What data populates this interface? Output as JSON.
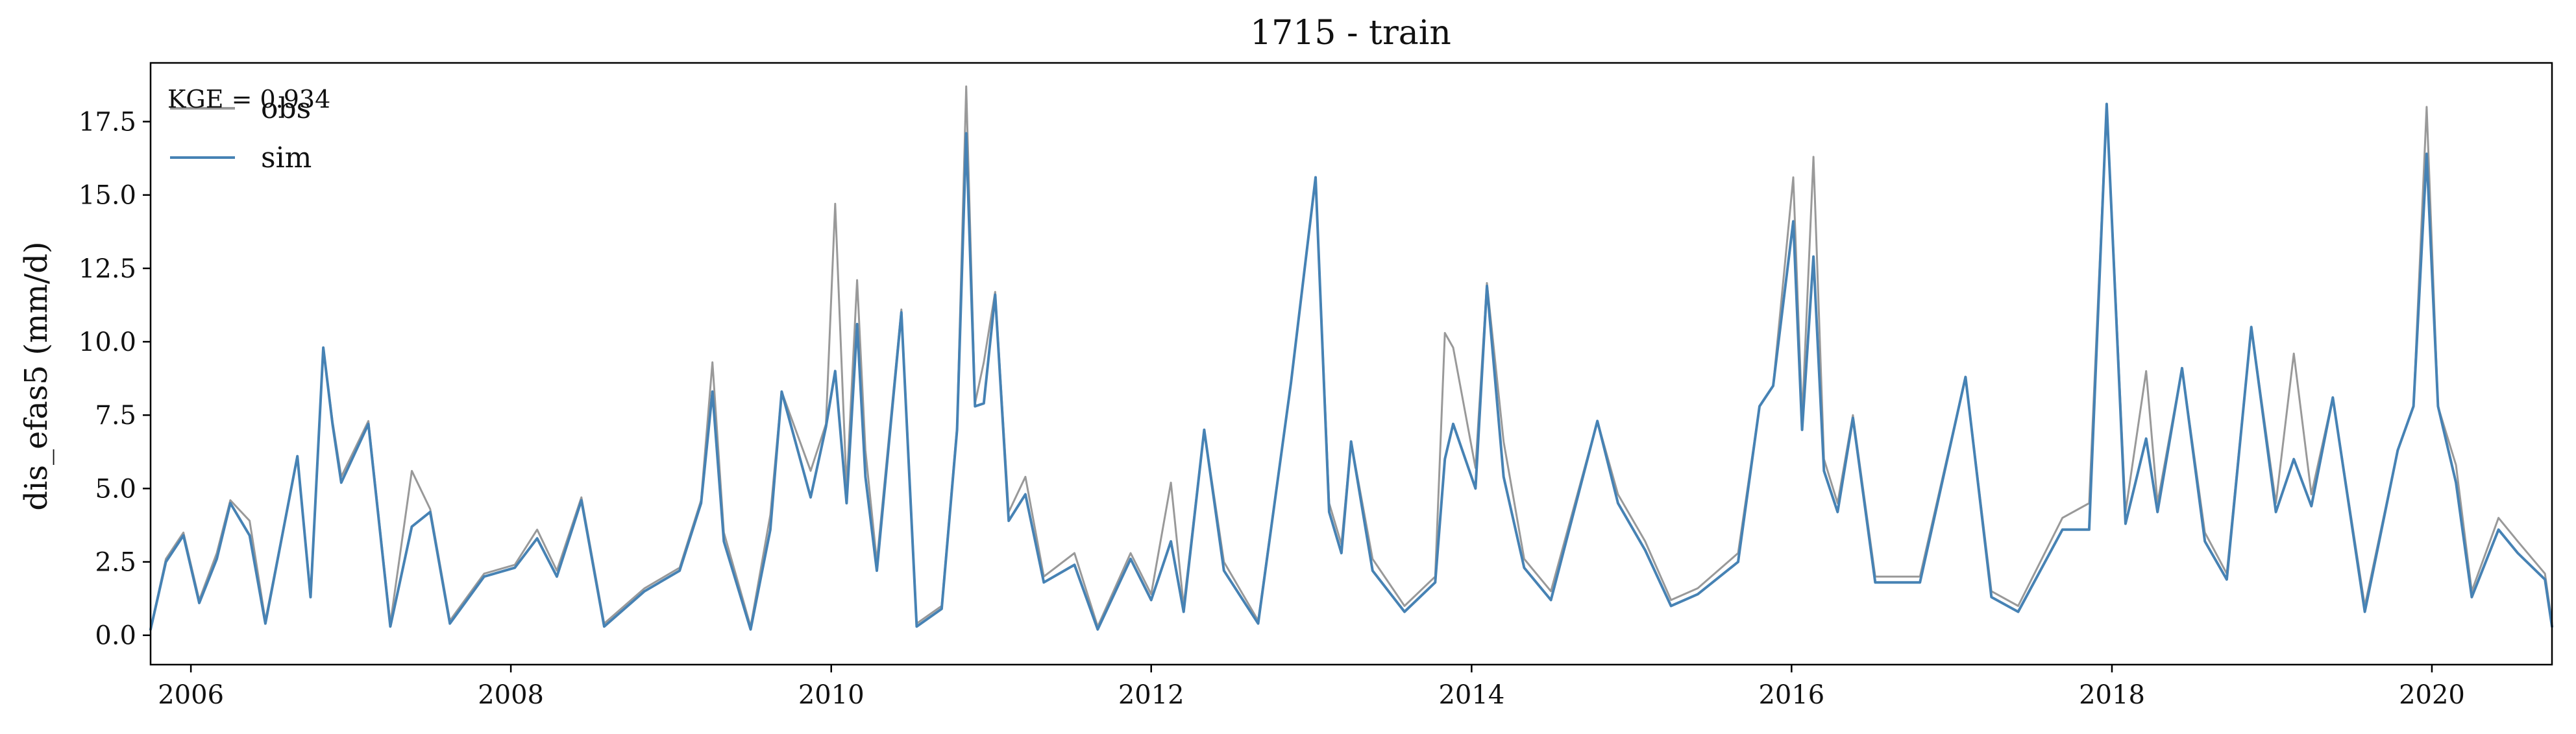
{
  "chart_data": {
    "type": "line",
    "title": "1715 - train",
    "xlabel": "",
    "ylabel": "dis_efas5 (mm/d)",
    "xlim": [
      "2005-10-01",
      "2020-10-01"
    ],
    "ylim": [
      -1.0,
      19.5
    ],
    "x_ticks": [
      "2006",
      "2008",
      "2010",
      "2012",
      "2014",
      "2016",
      "2018",
      "2020"
    ],
    "y_ticks": [
      "0.0",
      "2.5",
      "5.0",
      "7.5",
      "10.0",
      "12.5",
      "15.0",
      "17.5"
    ],
    "grid": false,
    "legend": {
      "position": "top-left",
      "entries": [
        "obs",
        "sim"
      ]
    },
    "annotation": "KGE = 0.934",
    "colors": {
      "obs": "#999999",
      "sim": "#4682b4"
    },
    "series": [
      {
        "name": "obs",
        "points": [
          [
            "2005-10-01",
            0.2
          ],
          [
            "2005-11-05",
            2.6
          ],
          [
            "2005-12-15",
            3.5
          ],
          [
            "2006-01-20",
            1.2
          ],
          [
            "2006-03-01",
            2.8
          ],
          [
            "2006-04-01",
            4.6
          ],
          [
            "2006-05-15",
            3.9
          ],
          [
            "2006-06-20",
            0.5
          ],
          [
            "2006-09-01",
            6.1
          ],
          [
            "2006-10-01",
            1.4
          ],
          [
            "2006-10-30",
            9.8
          ],
          [
            "2006-11-20",
            7.3
          ],
          [
            "2006-12-10",
            5.4
          ],
          [
            "2007-02-10",
            7.3
          ],
          [
            "2007-04-01",
            0.4
          ],
          [
            "2007-05-20",
            5.6
          ],
          [
            "2007-07-01",
            4.3
          ],
          [
            "2007-08-15",
            0.5
          ],
          [
            "2007-11-01",
            2.1
          ],
          [
            "2008-01-10",
            2.4
          ],
          [
            "2008-03-01",
            3.6
          ],
          [
            "2008-04-15",
            2.2
          ],
          [
            "2008-06-10",
            4.7
          ],
          [
            "2008-08-01",
            0.4
          ],
          [
            "2008-11-01",
            1.6
          ],
          [
            "2009-01-20",
            2.3
          ],
          [
            "2009-03-10",
            4.6
          ],
          [
            "2009-04-05",
            9.3
          ],
          [
            "2009-05-01",
            3.5
          ],
          [
            "2009-07-01",
            0.3
          ],
          [
            "2009-08-15",
            4.1
          ],
          [
            "2009-09-10",
            8.3
          ],
          [
            "2009-11-15",
            5.6
          ],
          [
            "2009-12-20",
            7.2
          ],
          [
            "2010-01-10",
            14.7
          ],
          [
            "2010-02-05",
            5.0
          ],
          [
            "2010-03-01",
            12.1
          ],
          [
            "2010-03-20",
            6.3
          ],
          [
            "2010-04-15",
            2.5
          ],
          [
            "2010-06-10",
            11.1
          ],
          [
            "2010-07-15",
            0.4
          ],
          [
            "2010-09-10",
            1.0
          ],
          [
            "2010-10-15",
            7.1
          ],
          [
            "2010-11-05",
            18.7
          ],
          [
            "2010-11-25",
            7.9
          ],
          [
            "2010-12-15",
            9.3
          ],
          [
            "2011-01-10",
            11.7
          ],
          [
            "2011-02-10",
            4.2
          ],
          [
            "2011-03-20",
            5.4
          ],
          [
            "2011-05-01",
            2.0
          ],
          [
            "2011-07-10",
            2.8
          ],
          [
            "2011-09-01",
            0.3
          ],
          [
            "2011-11-15",
            2.8
          ],
          [
            "2012-01-01",
            1.4
          ],
          [
            "2012-02-15",
            5.2
          ],
          [
            "2012-03-15",
            1.0
          ],
          [
            "2012-05-01",
            7.0
          ],
          [
            "2012-06-15",
            2.5
          ],
          [
            "2012-09-01",
            0.5
          ],
          [
            "2012-11-15",
            8.6
          ],
          [
            "2013-01-10",
            15.6
          ],
          [
            "2013-02-10",
            4.5
          ],
          [
            "2013-03-10",
            3.1
          ],
          [
            "2013-04-01",
            6.6
          ],
          [
            "2013-05-20",
            2.6
          ],
          [
            "2013-08-01",
            1.0
          ],
          [
            "2013-10-10",
            2.0
          ],
          [
            "2013-11-01",
            10.3
          ],
          [
            "2013-11-20",
            9.8
          ],
          [
            "2014-01-10",
            5.7
          ],
          [
            "2014-02-05",
            12.0
          ],
          [
            "2014-03-15",
            6.6
          ],
          [
            "2014-05-01",
            2.6
          ],
          [
            "2014-07-01",
            1.5
          ],
          [
            "2014-10-15",
            7.3
          ],
          [
            "2014-12-01",
            4.8
          ],
          [
            "2015-02-01",
            3.2
          ],
          [
            "2015-04-01",
            1.2
          ],
          [
            "2015-06-01",
            1.6
          ],
          [
            "2015-09-01",
            2.8
          ],
          [
            "2015-10-20",
            7.8
          ],
          [
            "2015-11-20",
            8.5
          ],
          [
            "2016-01-05",
            15.6
          ],
          [
            "2016-01-25",
            7.4
          ],
          [
            "2016-02-20",
            16.3
          ],
          [
            "2016-03-15",
            6.0
          ],
          [
            "2016-04-15",
            4.5
          ],
          [
            "2016-05-20",
            7.5
          ],
          [
            "2016-07-10",
            2.0
          ],
          [
            "2016-10-20",
            2.0
          ],
          [
            "2017-02-01",
            8.8
          ],
          [
            "2017-04-01",
            1.5
          ],
          [
            "2017-06-01",
            1.0
          ],
          [
            "2017-09-10",
            4.0
          ],
          [
            "2017-11-10",
            4.5
          ],
          [
            "2017-12-20",
            18.1
          ],
          [
            "2018-02-01",
            4.2
          ],
          [
            "2018-03-20",
            9.0
          ],
          [
            "2018-04-15",
            4.5
          ],
          [
            "2018-06-10",
            9.1
          ],
          [
            "2018-08-01",
            3.5
          ],
          [
            "2018-09-20",
            2.1
          ],
          [
            "2018-11-15",
            10.5
          ],
          [
            "2019-01-10",
            4.5
          ],
          [
            "2019-02-20",
            9.6
          ],
          [
            "2019-04-01",
            4.8
          ],
          [
            "2019-05-20",
            8.1
          ],
          [
            "2019-08-01",
            1.0
          ],
          [
            "2019-10-15",
            6.3
          ],
          [
            "2019-11-20",
            7.8
          ],
          [
            "2019-12-20",
            18.0
          ],
          [
            "2020-01-15",
            7.8
          ],
          [
            "2020-02-25",
            5.8
          ],
          [
            "2020-04-01",
            1.5
          ],
          [
            "2020-06-01",
            4.0
          ],
          [
            "2020-07-15",
            3.2
          ],
          [
            "2020-09-15",
            2.1
          ],
          [
            "2020-10-01",
            0.4
          ]
        ]
      },
      {
        "name": "sim",
        "points": [
          [
            "2005-10-01",
            0.2
          ],
          [
            "2005-11-05",
            2.5
          ],
          [
            "2005-12-15",
            3.4
          ],
          [
            "2006-01-20",
            1.1
          ],
          [
            "2006-03-01",
            2.6
          ],
          [
            "2006-04-01",
            4.5
          ],
          [
            "2006-05-15",
            3.4
          ],
          [
            "2006-06-20",
            0.4
          ],
          [
            "2006-09-01",
            6.1
          ],
          [
            "2006-10-01",
            1.3
          ],
          [
            "2006-10-30",
            9.8
          ],
          [
            "2006-11-20",
            7.2
          ],
          [
            "2006-12-10",
            5.2
          ],
          [
            "2007-02-10",
            7.2
          ],
          [
            "2007-04-01",
            0.3
          ],
          [
            "2007-05-20",
            3.7
          ],
          [
            "2007-07-01",
            4.2
          ],
          [
            "2007-08-15",
            0.4
          ],
          [
            "2007-11-01",
            2.0
          ],
          [
            "2008-01-10",
            2.3
          ],
          [
            "2008-03-01",
            3.3
          ],
          [
            "2008-04-15",
            2.0
          ],
          [
            "2008-06-10",
            4.6
          ],
          [
            "2008-08-01",
            0.3
          ],
          [
            "2008-11-01",
            1.5
          ],
          [
            "2009-01-20",
            2.2
          ],
          [
            "2009-03-10",
            4.5
          ],
          [
            "2009-04-05",
            8.3
          ],
          [
            "2009-05-01",
            3.2
          ],
          [
            "2009-07-01",
            0.2
          ],
          [
            "2009-08-15",
            3.6
          ],
          [
            "2009-09-10",
            8.3
          ],
          [
            "2009-11-15",
            4.7
          ],
          [
            "2009-12-20",
            7.1
          ],
          [
            "2010-01-10",
            9.0
          ],
          [
            "2010-02-05",
            4.5
          ],
          [
            "2010-03-01",
            10.6
          ],
          [
            "2010-03-20",
            5.4
          ],
          [
            "2010-04-15",
            2.2
          ],
          [
            "2010-06-10",
            11.0
          ],
          [
            "2010-07-15",
            0.3
          ],
          [
            "2010-09-10",
            0.9
          ],
          [
            "2010-10-15",
            7.0
          ],
          [
            "2010-11-05",
            17.1
          ],
          [
            "2010-11-25",
            7.8
          ],
          [
            "2010-12-15",
            7.9
          ],
          [
            "2011-01-10",
            11.6
          ],
          [
            "2011-02-10",
            3.9
          ],
          [
            "2011-03-20",
            4.8
          ],
          [
            "2011-05-01",
            1.8
          ],
          [
            "2011-07-10",
            2.4
          ],
          [
            "2011-09-01",
            0.2
          ],
          [
            "2011-11-15",
            2.6
          ],
          [
            "2012-01-01",
            1.2
          ],
          [
            "2012-02-15",
            3.2
          ],
          [
            "2012-03-15",
            0.8
          ],
          [
            "2012-05-01",
            7.0
          ],
          [
            "2012-06-15",
            2.2
          ],
          [
            "2012-09-01",
            0.4
          ],
          [
            "2012-11-15",
            8.6
          ],
          [
            "2013-01-10",
            15.6
          ],
          [
            "2013-02-10",
            4.2
          ],
          [
            "2013-03-10",
            2.8
          ],
          [
            "2013-04-01",
            6.6
          ],
          [
            "2013-05-20",
            2.2
          ],
          [
            "2013-08-01",
            0.8
          ],
          [
            "2013-10-10",
            1.8
          ],
          [
            "2013-11-01",
            6.0
          ],
          [
            "2013-11-20",
            7.2
          ],
          [
            "2014-01-10",
            5.0
          ],
          [
            "2014-02-05",
            11.9
          ],
          [
            "2014-03-15",
            5.4
          ],
          [
            "2014-05-01",
            2.3
          ],
          [
            "2014-07-01",
            1.2
          ],
          [
            "2014-10-15",
            7.3
          ],
          [
            "2014-12-01",
            4.5
          ],
          [
            "2015-02-01",
            2.9
          ],
          [
            "2015-04-01",
            1.0
          ],
          [
            "2015-06-01",
            1.4
          ],
          [
            "2015-09-01",
            2.5
          ],
          [
            "2015-10-20",
            7.8
          ],
          [
            "2015-11-20",
            8.5
          ],
          [
            "2016-01-05",
            14.1
          ],
          [
            "2016-01-25",
            7.0
          ],
          [
            "2016-02-20",
            12.9
          ],
          [
            "2016-03-15",
            5.6
          ],
          [
            "2016-04-15",
            4.2
          ],
          [
            "2016-05-20",
            7.4
          ],
          [
            "2016-07-10",
            1.8
          ],
          [
            "2016-10-20",
            1.8
          ],
          [
            "2017-02-01",
            8.8
          ],
          [
            "2017-04-01",
            1.3
          ],
          [
            "2017-06-01",
            0.8
          ],
          [
            "2017-09-10",
            3.6
          ],
          [
            "2017-11-10",
            3.6
          ],
          [
            "2017-12-20",
            18.1
          ],
          [
            "2018-02-01",
            3.8
          ],
          [
            "2018-03-20",
            6.7
          ],
          [
            "2018-04-15",
            4.2
          ],
          [
            "2018-06-10",
            9.1
          ],
          [
            "2018-08-01",
            3.2
          ],
          [
            "2018-09-20",
            1.9
          ],
          [
            "2018-11-15",
            10.5
          ],
          [
            "2019-01-10",
            4.2
          ],
          [
            "2019-02-20",
            6.0
          ],
          [
            "2019-04-01",
            4.4
          ],
          [
            "2019-05-20",
            8.1
          ],
          [
            "2019-08-01",
            0.8
          ],
          [
            "2019-10-15",
            6.3
          ],
          [
            "2019-11-20",
            7.8
          ],
          [
            "2019-12-20",
            16.4
          ],
          [
            "2020-01-15",
            7.8
          ],
          [
            "2020-02-25",
            5.2
          ],
          [
            "2020-04-01",
            1.3
          ],
          [
            "2020-06-01",
            3.6
          ],
          [
            "2020-07-15",
            2.8
          ],
          [
            "2020-09-15",
            1.9
          ],
          [
            "2020-10-01",
            0.3
          ]
        ]
      }
    ]
  }
}
